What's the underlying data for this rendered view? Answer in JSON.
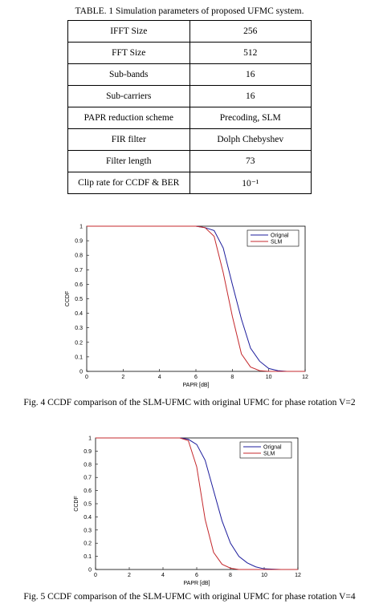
{
  "table": {
    "title": "TABLE. 1 Simulation parameters of proposed UFMC system.",
    "rows": [
      [
        "IFFT Size",
        "256"
      ],
      [
        "FFT Size",
        "512"
      ],
      [
        "Sub-bands",
        "16"
      ],
      [
        "Sub-carriers",
        "16"
      ],
      [
        "PAPR reduction scheme",
        "Precoding, SLM"
      ],
      [
        "FIR filter",
        "Dolph Chebyshev"
      ],
      [
        "Filter length",
        "73"
      ],
      [
        "Clip rate for CCDF & BER",
        "10⁻¹"
      ]
    ]
  },
  "chart_data": [
    {
      "type": "line",
      "caption": "Fig. 4 CCDF comparison of the SLM-UFMC with original UFMC for phase rotation V=2",
      "x_label": "PAPR [dB]",
      "y_label": "CCDF",
      "x": [
        0,
        1,
        2,
        3,
        4,
        5,
        6,
        6.5,
        7,
        7.5,
        8,
        8.5,
        9,
        9.5,
        10,
        10.5,
        11,
        12
      ],
      "series": [
        {
          "name": "Orignal",
          "color": "#1c1c9c",
          "values": [
            1,
            1,
            1,
            1,
            1,
            1,
            1,
            0.99,
            0.97,
            0.85,
            0.6,
            0.36,
            0.16,
            0.07,
            0.02,
            0.005,
            0,
            0
          ]
        },
        {
          "name": "SLM",
          "color": "#c4282c",
          "values": [
            1,
            1,
            1,
            1,
            1,
            1,
            1,
            0.99,
            0.93,
            0.68,
            0.38,
            0.12,
            0.03,
            0.005,
            0,
            0,
            0,
            0
          ]
        }
      ],
      "xlim": [
        0,
        12
      ],
      "xticks": [
        0,
        2,
        4,
        6,
        8,
        10,
        12
      ],
      "ylim": [
        0,
        1
      ],
      "yticks": [
        0,
        0.1,
        0.2,
        0.3,
        0.4,
        0.5,
        0.6,
        0.7,
        0.8,
        0.9,
        1
      ],
      "grid": false,
      "legend": "upper right"
    },
    {
      "type": "line",
      "caption": "Fig. 5 CCDF comparison of the SLM-UFMC with original UFMC for phase rotation V=4",
      "x_label": "PAPR [dB]",
      "y_label": "CCDF",
      "x": [
        0,
        1,
        2,
        3,
        4,
        5,
        5.5,
        6,
        6.5,
        7,
        7.5,
        8,
        8.5,
        9,
        9.5,
        10,
        11,
        12
      ],
      "series": [
        {
          "name": "Orignal",
          "color": "#1c1c9c",
          "values": [
            1,
            1,
            1,
            1,
            1,
            1,
            0.99,
            0.95,
            0.83,
            0.6,
            0.37,
            0.2,
            0.1,
            0.05,
            0.02,
            0.005,
            0,
            0
          ]
        },
        {
          "name": "SLM",
          "color": "#c4282c",
          "values": [
            1,
            1,
            1,
            1,
            1,
            1,
            0.98,
            0.78,
            0.38,
            0.13,
            0.04,
            0.01,
            0,
            0,
            0,
            0,
            0,
            0
          ]
        }
      ],
      "xlim": [
        0,
        12
      ],
      "xticks": [
        0,
        2,
        4,
        6,
        8,
        10,
        12
      ],
      "ylim": [
        0,
        1
      ],
      "yticks": [
        0,
        0.1,
        0.2,
        0.3,
        0.4,
        0.5,
        0.6,
        0.7,
        0.8,
        0.9,
        1
      ],
      "grid": false,
      "legend": "upper right"
    }
  ]
}
